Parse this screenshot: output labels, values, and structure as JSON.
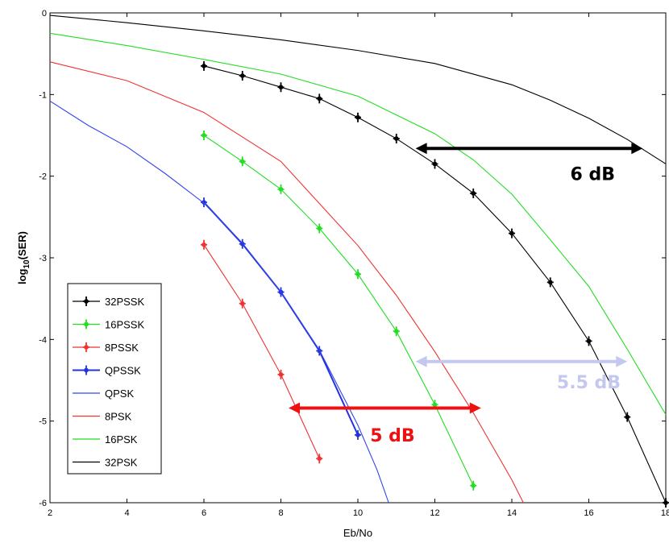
{
  "chart_data": {
    "type": "line",
    "xlabel": "Eb/No",
    "ylabel_main": "log",
    "ylabel_sub": "10",
    "ylabel_rest": "(SER)",
    "xlim": [
      2,
      18
    ],
    "ylim": [
      -6,
      0
    ],
    "x_ticks": [
      2,
      4,
      6,
      8,
      10,
      12,
      14,
      16,
      18
    ],
    "y_ticks": [
      0,
      -1,
      -2,
      -3,
      -4,
      -5,
      -6
    ],
    "x_tick_labels": [
      "2",
      "4",
      "6",
      "8",
      "10",
      "12",
      "14",
      "16",
      "18"
    ],
    "y_tick_labels": [
      "0",
      "-1",
      "-2",
      "-3",
      "-4",
      "-5",
      "-6"
    ],
    "series": [
      {
        "name": "32PSSK",
        "color": "#000000",
        "marker": true,
        "x": [
          6,
          7,
          8,
          9,
          10,
          11,
          12,
          13,
          14,
          15,
          16,
          17,
          18
        ],
        "y": [
          -0.65,
          -0.77,
          -0.91,
          -1.05,
          -1.28,
          -1.54,
          -1.85,
          -2.21,
          -2.7,
          -3.3,
          -4.02,
          -4.95,
          -6.0
        ]
      },
      {
        "name": "16PSSK",
        "color": "#22dd22",
        "marker": true,
        "x": [
          6,
          7,
          8,
          9,
          10,
          11,
          12,
          13
        ],
        "y": [
          -1.5,
          -1.82,
          -2.16,
          -2.64,
          -3.2,
          -3.9,
          -4.8,
          -5.79
        ]
      },
      {
        "name": "8PSSK",
        "color": "#ee3333",
        "marker": true,
        "x": [
          6,
          7,
          8,
          9
        ],
        "y": [
          -2.84,
          -3.56,
          -4.43,
          -5.46
        ]
      },
      {
        "name": "QPSSK",
        "color": "#2233dd",
        "marker": true,
        "x": [
          6,
          7,
          8,
          9,
          10
        ],
        "y": [
          -2.32,
          -2.83,
          -3.42,
          -4.14,
          -5.17
        ]
      },
      {
        "name": "QPSK",
        "color": "#3344ee",
        "marker": false,
        "x": [
          2,
          3,
          4,
          5,
          6,
          7,
          8,
          9,
          10,
          10.5,
          10.8
        ],
        "y": [
          -1.08,
          -1.38,
          -1.64,
          -1.97,
          -2.33,
          -2.82,
          -3.42,
          -4.13,
          -5.05,
          -5.6,
          -6.0
        ]
      },
      {
        "name": "8PSK",
        "color": "#ee3333",
        "marker": false,
        "x": [
          2,
          4,
          6,
          8,
          10,
          11,
          12,
          13,
          14,
          14.3
        ],
        "y": [
          -0.6,
          -0.83,
          -1.22,
          -1.82,
          -2.85,
          -3.46,
          -4.15,
          -4.9,
          -5.72,
          -6.0
        ]
      },
      {
        "name": "16PSK",
        "color": "#22dd22",
        "marker": false,
        "x": [
          2,
          4,
          6,
          8,
          10,
          12,
          13,
          14,
          15,
          16,
          17,
          18
        ],
        "y": [
          -0.25,
          -0.4,
          -0.57,
          -0.75,
          -1.02,
          -1.48,
          -1.8,
          -2.22,
          -2.78,
          -3.35,
          -4.12,
          -4.92
        ]
      },
      {
        "name": "32PSK",
        "color": "#000000",
        "marker": false,
        "x": [
          2,
          4,
          6,
          8,
          10,
          12,
          14,
          15,
          16,
          17,
          18
        ],
        "y": [
          -0.03,
          -0.12,
          -0.22,
          -0.33,
          -0.46,
          -0.62,
          -0.88,
          -1.07,
          -1.29,
          -1.55,
          -1.85
        ]
      }
    ],
    "annotations": [
      {
        "text": "6 dB",
        "color": "#000000",
        "x1": 11.5,
        "x2": 17.4,
        "y": -1.66,
        "text_x": 16.1,
        "text_y": -2.05
      },
      {
        "text": "5.5 dB",
        "color": "#c4c8f0",
        "x1": 11.5,
        "x2": 17.0,
        "y": -4.27,
        "text_x": 16.0,
        "text_y": -4.6
      },
      {
        "text": "5 dB",
        "color": "#ee1111",
        "x1": 8.2,
        "x2": 13.2,
        "y": -4.84,
        "text_x": 10.9,
        "text_y": -5.25
      }
    ],
    "legend": {
      "placement": "bottom-left"
    },
    "grid": false
  }
}
